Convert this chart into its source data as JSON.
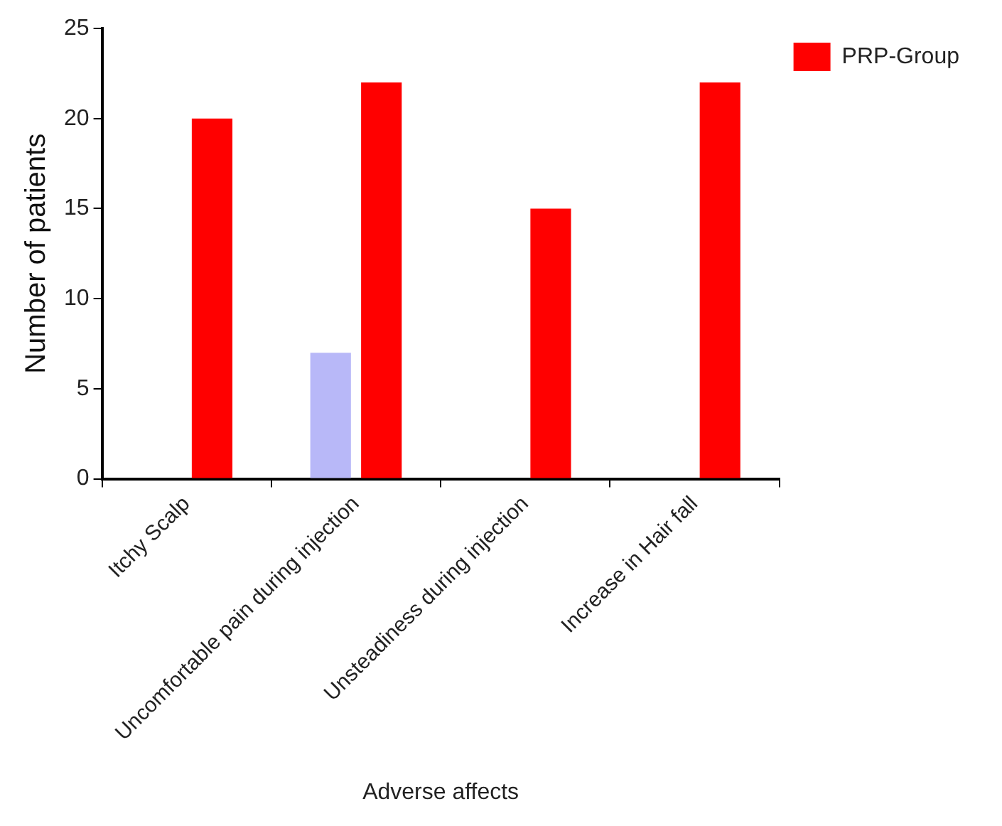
{
  "chart_data": {
    "type": "bar",
    "xlabel": "Adverse affects",
    "ylabel": "Number of patients",
    "categories": [
      "Itchy Scalp",
      "Uncomfortable pain during injection",
      "Unsteadiness during injection",
      "Increase in Hair fall"
    ],
    "series": [
      {
        "color": "#b8b8f8",
        "values": [
          0,
          7,
          0,
          0
        ]
      },
      {
        "name": "PRP-Group",
        "color": "#ff0000",
        "values": [
          20,
          22,
          15,
          22
        ]
      }
    ],
    "ylim": [
      0,
      25
    ],
    "yticks": [
      0,
      5,
      10,
      15,
      20,
      25
    ],
    "grid": false,
    "legend": "top right"
  }
}
